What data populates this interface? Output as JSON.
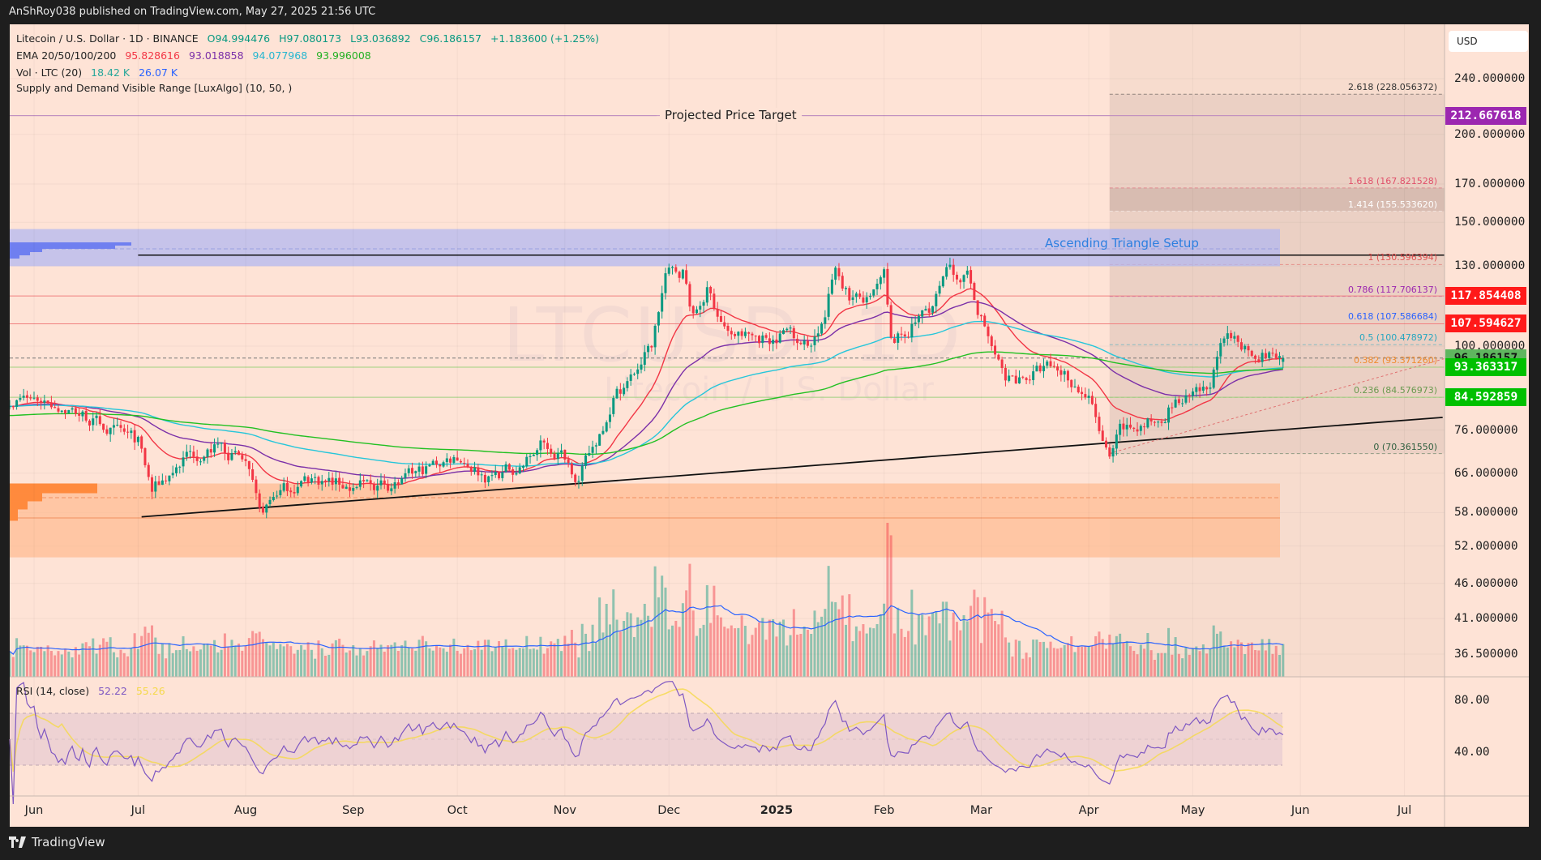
{
  "header": {
    "published": "AnShRoy038 published on TradingView.com, May 27, 2025 21:56 UTC"
  },
  "legend": {
    "symbol": "Litecoin / U.S. Dollar · 1D · BINANCE",
    "open": "O94.994476",
    "high": "H97.080173",
    "low": "L93.036892",
    "close": "C96.186157",
    "change": "+1.183600 (+1.25%)",
    "ema_label": "EMA 20/50/100/200",
    "ema_values": [
      "95.828616",
      "93.018858",
      "94.077968",
      "93.996008"
    ],
    "vol_label": "Vol · LTC (20)",
    "vol_values": [
      "18.42 K",
      "26.07 K"
    ],
    "sd_label": "Supply and Demand Visible Range [LuxAlgo] (10, 50, )",
    "rsi_label": "RSI (14, close)",
    "rsi_values": [
      "52.22",
      "55.26"
    ]
  },
  "watermark": {
    "symbol": "LTCUSD, 1D",
    "name": "Litecoin / U.S. Dollar"
  },
  "currency": "USD",
  "annotations": {
    "target": "Projected Price Target",
    "pattern": "Ascending Triangle Setup"
  },
  "brand": "TradingView",
  "colors": {
    "background": "#fee3d6",
    "up": "#089981",
    "down": "#f23645",
    "ema": [
      "#f23645",
      "#7b2fa8",
      "#26c6da",
      "#22c022"
    ],
    "vol_ma": "#2962ff",
    "rsi": "#7e57c2",
    "rsi_ma": "#f5d94a",
    "supply_zone": "#b3b8f0",
    "demand_zone": "#ffb98f"
  },
  "chart_data": {
    "type": "candlestick",
    "symbol": "LTCUSD",
    "interval": "1D",
    "y_scale": "log",
    "ylim": [
      34,
      262
    ],
    "grid": true,
    "price_ticks": [
      "240.000000",
      "200.000000",
      "170.000000",
      "150.000000",
      "130.000000",
      "100.000000",
      "76.000000",
      "66.000000",
      "58.000000",
      "52.000000",
      "46.000000",
      "41.000000",
      "36.500000"
    ],
    "rsi_ticks": [
      "80.00",
      "40.00"
    ],
    "time_ticks": [
      {
        "label": "Jun",
        "date": "2024-06-01"
      },
      {
        "label": "Jul",
        "date": "2024-07-01"
      },
      {
        "label": "Aug",
        "date": "2024-08-01"
      },
      {
        "label": "Sep",
        "date": "2024-09-01"
      },
      {
        "label": "Oct",
        "date": "2024-10-01"
      },
      {
        "label": "Nov",
        "date": "2024-11-01"
      },
      {
        "label": "Dec",
        "date": "2024-12-01"
      },
      {
        "label": "2025",
        "date": "2025-01-01",
        "bold": true
      },
      {
        "label": "Feb",
        "date": "2025-02-01"
      },
      {
        "label": "Mar",
        "date": "2025-03-01"
      },
      {
        "label": "Apr",
        "date": "2025-04-01"
      },
      {
        "label": "May",
        "date": "2025-05-01"
      },
      {
        "label": "Jun",
        "date": "2025-06-01"
      },
      {
        "label": "Jul",
        "date": "2025-07-01"
      }
    ],
    "close_path": [
      [
        "2024-05-25",
        84
      ],
      [
        "2024-06-05",
        84
      ],
      [
        "2024-06-15",
        80
      ],
      [
        "2024-06-25",
        75
      ],
      [
        "2024-07-01",
        73
      ],
      [
        "2024-07-05",
        62
      ],
      [
        "2024-07-15",
        70
      ],
      [
        "2024-07-25",
        72
      ],
      [
        "2024-08-01",
        68
      ],
      [
        "2024-08-05",
        57
      ],
      [
        "2024-08-10",
        62
      ],
      [
        "2024-08-20",
        65
      ],
      [
        "2024-09-01",
        63
      ],
      [
        "2024-09-15",
        64
      ],
      [
        "2024-09-25",
        68
      ],
      [
        "2024-10-01",
        70
      ],
      [
        "2024-10-10",
        65
      ],
      [
        "2024-10-20",
        68
      ],
      [
        "2024-10-25",
        72
      ],
      [
        "2024-11-01",
        70
      ],
      [
        "2024-11-05",
        65
      ],
      [
        "2024-11-10",
        73
      ],
      [
        "2024-11-15",
        85
      ],
      [
        "2024-11-20",
        90
      ],
      [
        "2024-11-26",
        100
      ],
      [
        "2024-11-30",
        126
      ],
      [
        "2024-12-05",
        128
      ],
      [
        "2024-12-08",
        110
      ],
      [
        "2024-12-12",
        120
      ],
      [
        "2024-12-18",
        104
      ],
      [
        "2024-12-25",
        103
      ],
      [
        "2024-12-31",
        103
      ],
      [
        "2025-01-05",
        106
      ],
      [
        "2025-01-10",
        100
      ],
      [
        "2025-01-15",
        110
      ],
      [
        "2025-01-18",
        130
      ],
      [
        "2025-01-22",
        118
      ],
      [
        "2025-01-28",
        115
      ],
      [
        "2025-02-01",
        125
      ],
      [
        "2025-02-03",
        100
      ],
      [
        "2025-02-08",
        105
      ],
      [
        "2025-02-15",
        115
      ],
      [
        "2025-02-20",
        128
      ],
      [
        "2025-02-25",
        125
      ],
      [
        "2025-03-01",
        110
      ],
      [
        "2025-03-04",
        100
      ],
      [
        "2025-03-08",
        89
      ],
      [
        "2025-03-15",
        91
      ],
      [
        "2025-03-20",
        93
      ],
      [
        "2025-03-25",
        92
      ],
      [
        "2025-04-01",
        84
      ],
      [
        "2025-04-07",
        68
      ],
      [
        "2025-04-10",
        75
      ],
      [
        "2025-04-20",
        78
      ],
      [
        "2025-04-25",
        83
      ],
      [
        "2025-05-01",
        84
      ],
      [
        "2025-05-05",
        86
      ],
      [
        "2025-05-10",
        101
      ],
      [
        "2025-05-14",
        102
      ],
      [
        "2025-05-20",
        98
      ],
      [
        "2025-05-27",
        96.186157
      ]
    ],
    "ema_periods": [
      20,
      50,
      100,
      200
    ],
    "horizontal_levels": [
      {
        "price": 212.667618,
        "label": "212.667618",
        "color": "#9c27b0"
      },
      {
        "price": 117.854408,
        "label": "117.854408",
        "color": "#ff1a1a"
      },
      {
        "price": 107.594627,
        "label": "107.594627",
        "color": "#ff1a1a"
      },
      {
        "price": 96.186157,
        "label": "96.186157",
        "color": "#4caf50"
      },
      {
        "price": 93.363317,
        "label": "93.363317",
        "color": "#00c000"
      },
      {
        "price": 84.592859,
        "label": "84.592859",
        "color": "#00c000"
      }
    ],
    "fibonacci": {
      "start_date": "2025-04-07",
      "levels": [
        {
          "ratio": "2.618",
          "price": 228.056372,
          "color": "#333333"
        },
        {
          "ratio": "1.618",
          "price": 167.821528,
          "color": "#e0506a"
        },
        {
          "ratio": "1.414",
          "price": 155.53362,
          "color": "#ffffff"
        },
        {
          "ratio": "1",
          "price": 130.596394,
          "color": "#e05050"
        },
        {
          "ratio": "0.786",
          "price": 117.706137,
          "color": "#9c27b0"
        },
        {
          "ratio": "0.618",
          "price": 107.586684,
          "color": "#2962ff"
        },
        {
          "ratio": "0.5",
          "price": 100.478972,
          "color": "#26a6c0"
        },
        {
          "ratio": "0.382",
          "price": 93.37126,
          "color": "#f08c30"
        },
        {
          "ratio": "0.236",
          "price": 84.576973,
          "color": "#6a9a50"
        },
        {
          "ratio": "0",
          "price": 70.36155,
          "color": "#2f5f3f"
        }
      ]
    },
    "supply_zone": {
      "top": 146.7,
      "bottom": 129.9,
      "mid": 137.5
    },
    "demand_zone": {
      "top": 63.8,
      "bottom": 50.1,
      "lines": [
        60.9,
        57.0
      ]
    },
    "resistance_line": {
      "price": 134.7,
      "from": "2024-07-01"
    },
    "support_line": {
      "from": [
        "2024-07-02",
        57.2
      ],
      "to": [
        "2025-07-12",
        79.2
      ]
    }
  }
}
